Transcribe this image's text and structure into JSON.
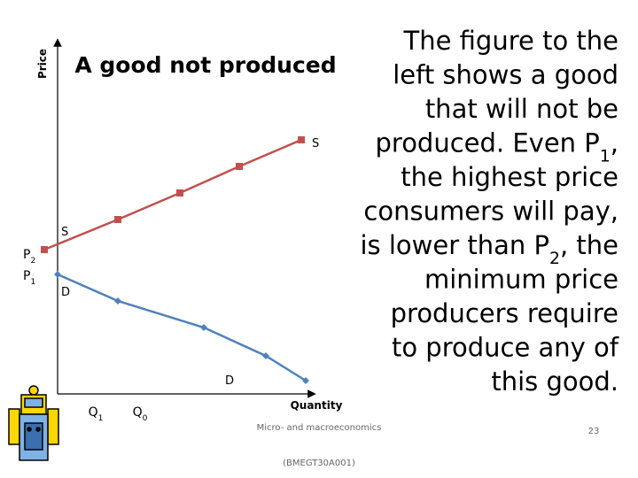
{
  "slide": {
    "title": "A good not produced",
    "axes": {
      "y": "Price",
      "x": "Quantity"
    },
    "curve_labels": {
      "supply_left": "S",
      "supply_right": "S",
      "demand_left": "D",
      "demand_right": "D"
    },
    "price_labels": [
      [
        "P",
        "2"
      ],
      [
        "P",
        "1"
      ]
    ],
    "quantity_labels": [
      [
        "Q",
        "1"
      ],
      [
        "Q",
        "0"
      ]
    ],
    "text_lines": [
      [
        "The figure to the"
      ],
      [
        "left shows a good"
      ],
      [
        "that will not be"
      ],
      [
        "produced. Even P",
        "1",
        ","
      ],
      [
        "the highest price"
      ],
      [
        "consumers will pay,"
      ],
      [
        "is lower than P",
        "2",
        ", the"
      ],
      [
        "minimum price"
      ],
      [
        "producers require"
      ],
      [
        "to produce any of"
      ],
      [
        "this good."
      ]
    ],
    "footer": {
      "course": "Micro- and macroeconomics",
      "code": "(BMEGT30A001)",
      "page": "23"
    }
  }
}
